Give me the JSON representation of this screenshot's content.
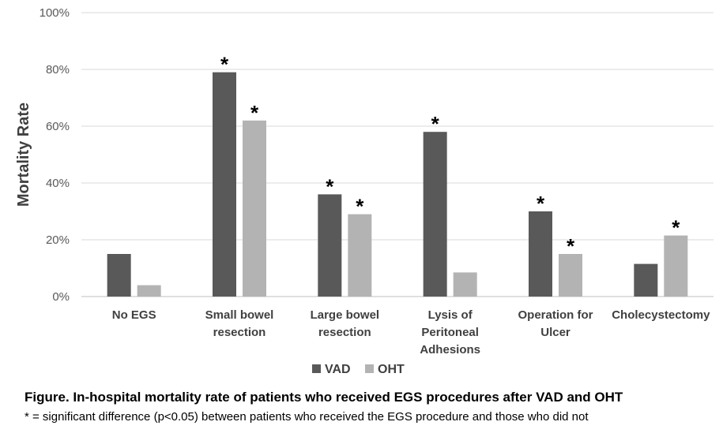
{
  "chart_data": {
    "type": "bar",
    "categories": [
      [
        "No EGS"
      ],
      [
        "Small bowel",
        "resection"
      ],
      [
        "Large bowel",
        "resection"
      ],
      [
        "Lysis of",
        "Peritoneal",
        "Adhesions"
      ],
      [
        "Operation for",
        "Ulcer"
      ],
      [
        "Cholecystectomy"
      ]
    ],
    "series": [
      {
        "name": "VAD",
        "color": "#595959",
        "values": [
          15,
          79,
          36,
          58,
          30,
          11.5
        ],
        "significant": [
          false,
          true,
          true,
          true,
          true,
          false
        ]
      },
      {
        "name": "OHT",
        "color": "#b3b3b3",
        "values": [
          4,
          62,
          29,
          8.5,
          15,
          21.5
        ],
        "significant": [
          false,
          true,
          true,
          false,
          true,
          true
        ]
      }
    ],
    "ylabel": "Mortality Rate",
    "ylim": [
      0,
      100
    ],
    "yticks": [
      "0%",
      "20%",
      "40%",
      "60%",
      "80%",
      "100%"
    ],
    "significance_marker": "*",
    "grid": true,
    "legend_position": "bottom"
  },
  "caption": "Figure. In-hospital mortality rate of patients who received EGS procedures after VAD and OHT",
  "footnote": "* = significant difference (p<0.05) between patients who received the EGS procedure and those who did not"
}
